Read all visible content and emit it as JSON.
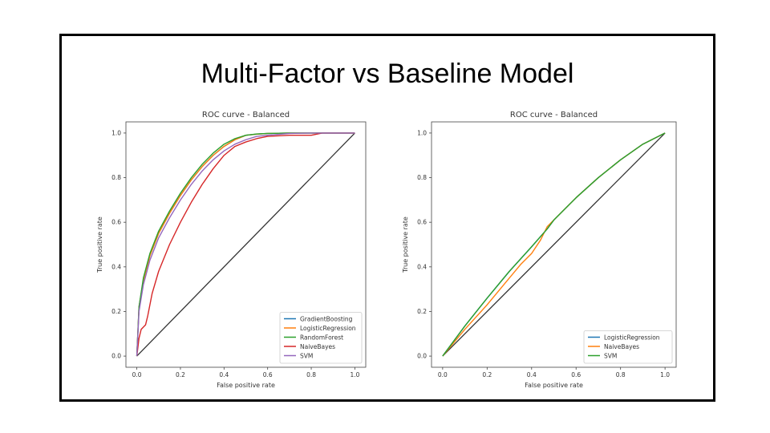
{
  "slide": {
    "title": "Multi-Factor vs Baseline Model",
    "border_color": "#000000"
  },
  "chart_data": [
    {
      "type": "line",
      "title": "ROC curve - Balanced",
      "xlabel": "False positive rate",
      "ylabel": "True positive rate",
      "xlim": [
        -0.05,
        1.05
      ],
      "ylim": [
        -0.05,
        1.05
      ],
      "xticks": [
        "0.0",
        "0.2",
        "0.4",
        "0.6",
        "0.8",
        "1.0"
      ],
      "yticks": [
        "0.0",
        "0.2",
        "0.4",
        "0.6",
        "0.8",
        "1.0"
      ],
      "grid": false,
      "legend_position": "lower-right",
      "diagonal": {
        "x": [
          0,
          1
        ],
        "y": [
          0,
          1
        ],
        "color": "#333333"
      },
      "series": [
        {
          "name": "GradientBoosting",
          "color": "#1f77b4",
          "x": [
            0,
            0.01,
            0.03,
            0.06,
            0.1,
            0.15,
            0.2,
            0.25,
            0.3,
            0.35,
            0.4,
            0.45,
            0.5,
            0.55,
            0.6,
            0.7,
            0.8,
            1.0
          ],
          "y": [
            0,
            0.22,
            0.34,
            0.45,
            0.55,
            0.64,
            0.72,
            0.79,
            0.85,
            0.9,
            0.94,
            0.97,
            0.99,
            0.995,
            0.998,
            1.0,
            1.0,
            1.0
          ]
        },
        {
          "name": "LogisticRegression",
          "color": "#ff7f0e",
          "x": [
            0,
            0.01,
            0.03,
            0.06,
            0.1,
            0.15,
            0.2,
            0.25,
            0.3,
            0.35,
            0.4,
            0.45,
            0.5,
            0.55,
            0.6,
            0.7,
            0.8,
            1.0
          ],
          "y": [
            0,
            0.22,
            0.34,
            0.45,
            0.55,
            0.64,
            0.72,
            0.79,
            0.85,
            0.9,
            0.94,
            0.97,
            0.99,
            0.995,
            0.998,
            1.0,
            1.0,
            1.0
          ]
        },
        {
          "name": "RandomForest",
          "color": "#2ca02c",
          "x": [
            0,
            0.01,
            0.03,
            0.06,
            0.1,
            0.15,
            0.2,
            0.25,
            0.3,
            0.35,
            0.4,
            0.45,
            0.5,
            0.55,
            0.6,
            0.7,
            0.8,
            1.0
          ],
          "y": [
            0,
            0.22,
            0.35,
            0.46,
            0.56,
            0.65,
            0.73,
            0.8,
            0.86,
            0.91,
            0.95,
            0.975,
            0.99,
            0.996,
            0.998,
            1.0,
            1.0,
            1.0
          ]
        },
        {
          "name": "NaiveBayes",
          "color": "#d62728",
          "x": [
            0,
            0.01,
            0.02,
            0.04,
            0.05,
            0.07,
            0.1,
            0.15,
            0.2,
            0.25,
            0.3,
            0.35,
            0.4,
            0.45,
            0.5,
            0.55,
            0.6,
            0.7,
            0.8,
            0.85,
            1.0
          ],
          "y": [
            0,
            0.08,
            0.12,
            0.14,
            0.18,
            0.28,
            0.38,
            0.5,
            0.6,
            0.69,
            0.77,
            0.84,
            0.9,
            0.94,
            0.96,
            0.975,
            0.985,
            0.99,
            0.99,
            1.0,
            1.0
          ]
        },
        {
          "name": "SVM",
          "color": "#9467bd",
          "x": [
            0,
            0.01,
            0.03,
            0.06,
            0.1,
            0.15,
            0.2,
            0.25,
            0.3,
            0.35,
            0.4,
            0.45,
            0.5,
            0.55,
            0.6,
            0.7,
            0.8,
            1.0
          ],
          "y": [
            0,
            0.2,
            0.32,
            0.43,
            0.53,
            0.62,
            0.7,
            0.77,
            0.83,
            0.88,
            0.92,
            0.95,
            0.97,
            0.985,
            0.99,
            0.998,
            1.0,
            1.0
          ]
        }
      ]
    },
    {
      "type": "line",
      "title": "ROC curve - Balanced",
      "xlabel": "False positive rate",
      "ylabel": "True positive rate",
      "xlim": [
        -0.05,
        1.05
      ],
      "ylim": [
        -0.05,
        1.05
      ],
      "xticks": [
        "0.0",
        "0.2",
        "0.4",
        "0.6",
        "0.8",
        "1.0"
      ],
      "yticks": [
        "0.0",
        "0.2",
        "0.4",
        "0.6",
        "0.8",
        "1.0"
      ],
      "grid": false,
      "legend_position": "lower-right",
      "diagonal": {
        "x": [
          0,
          1
        ],
        "y": [
          0,
          1
        ],
        "color": "#333333"
      },
      "series": [
        {
          "name": "LogisticRegression",
          "color": "#1f77b4",
          "x": [
            0,
            0.1,
            0.2,
            0.3,
            0.4,
            0.47,
            0.5,
            0.6,
            0.7,
            0.8,
            0.9,
            1.0
          ],
          "y": [
            0,
            0.135,
            0.26,
            0.38,
            0.49,
            0.57,
            0.61,
            0.71,
            0.8,
            0.88,
            0.95,
            1.0
          ]
        },
        {
          "name": "NaiveBayes",
          "color": "#ff7f0e",
          "x": [
            0,
            0.1,
            0.2,
            0.3,
            0.35,
            0.4,
            0.44,
            0.47,
            0.5,
            0.6,
            0.7,
            0.8,
            0.9,
            1.0
          ],
          "y": [
            0,
            0.12,
            0.23,
            0.35,
            0.41,
            0.46,
            0.52,
            0.58,
            0.61,
            0.71,
            0.8,
            0.88,
            0.95,
            1.0
          ]
        },
        {
          "name": "SVM",
          "color": "#2ca02c",
          "x": [
            0,
            0.1,
            0.2,
            0.3,
            0.4,
            0.47,
            0.5,
            0.6,
            0.7,
            0.8,
            0.9,
            1.0
          ],
          "y": [
            0,
            0.135,
            0.26,
            0.38,
            0.49,
            0.57,
            0.61,
            0.71,
            0.8,
            0.88,
            0.95,
            1.0
          ]
        }
      ]
    }
  ]
}
